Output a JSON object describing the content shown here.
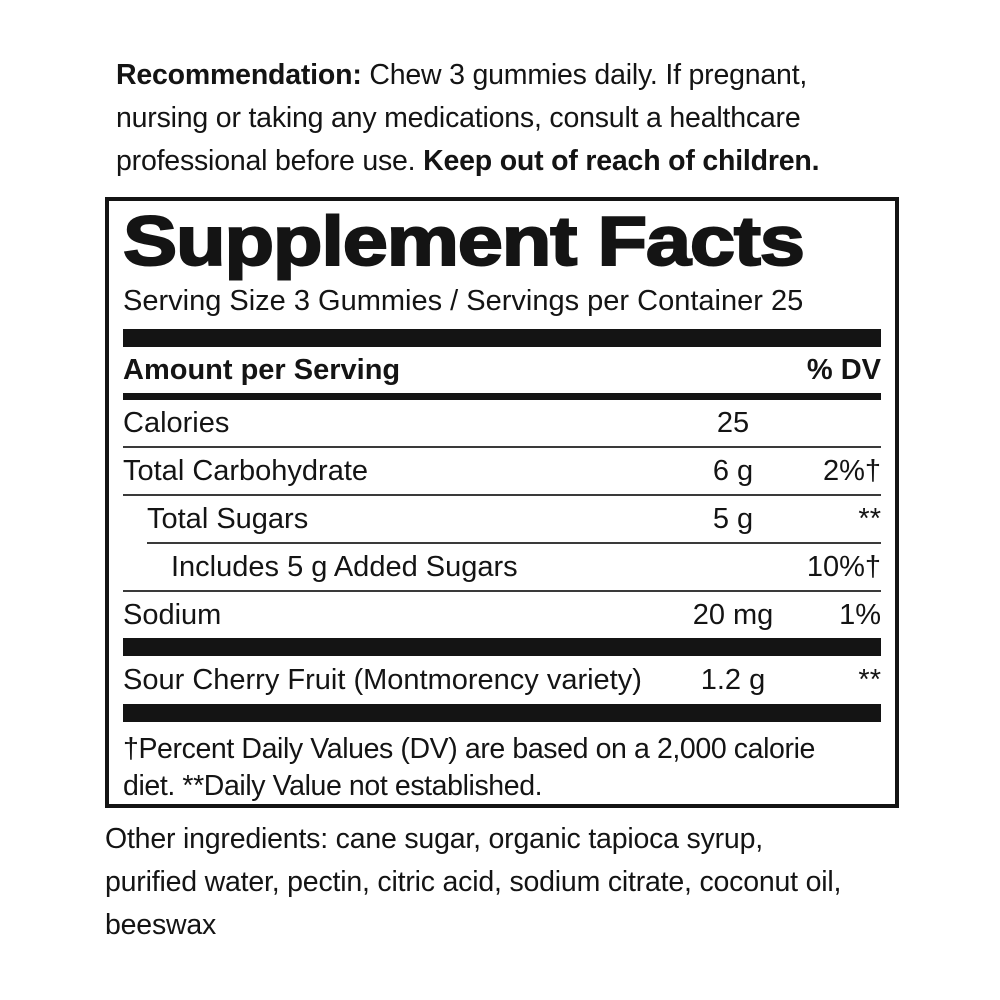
{
  "recommendation": {
    "line1_bold": "Recommendation:",
    "line1_rest": " Chew 3 gummies daily. If pregnant,",
    "line2": "nursing or taking any medications, consult a healthcare",
    "line3_rest": "professional before use. ",
    "line3_bold": "Keep out of reach of children."
  },
  "supplement_facts": {
    "title": "Supplement Facts",
    "serving_info": "Serving Size 3 Gummies / Servings per Container 25",
    "column_headers": {
      "amount": "Amount per Serving",
      "dv": "% DV"
    },
    "nutrients": [
      {
        "name": "Calories",
        "amount": "25",
        "dv": ""
      },
      {
        "name": "Total Carbohydrate",
        "amount": "6 g",
        "dv": "2%†"
      },
      {
        "name": "Total Sugars",
        "amount": "5 g",
        "dv": "**"
      },
      {
        "name": "Includes 5 g Added Sugars",
        "amount": "",
        "dv": "10%†"
      },
      {
        "name": "Sodium",
        "amount": "20 mg",
        "dv": "1%"
      },
      {
        "name": "Sour Cherry Fruit (Montmorency variety)",
        "amount": "1.2 g",
        "dv": "**"
      }
    ],
    "footnote_lines": [
      "†Percent Daily Values (DV) are based on a 2,000 calorie",
      "diet. **Daily Value not established."
    ]
  },
  "other_ingredients_lines": [
    "Other ingredients: cane sugar, organic tapioca syrup,",
    "purified water, pectin, citric acid, sodium citrate, coconut oil,",
    "beeswax"
  ]
}
